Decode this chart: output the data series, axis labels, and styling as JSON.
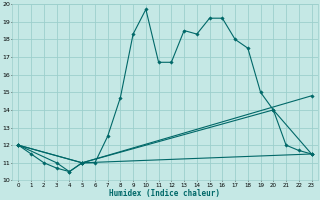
{
  "xlabel": "Humidex (Indice chaleur)",
  "xlim": [
    -0.5,
    23.5
  ],
  "ylim": [
    10,
    20
  ],
  "xticks": [
    0,
    1,
    2,
    3,
    4,
    5,
    6,
    7,
    8,
    9,
    10,
    11,
    12,
    13,
    14,
    15,
    16,
    17,
    18,
    19,
    20,
    21,
    22,
    23
  ],
  "yticks": [
    10,
    11,
    12,
    13,
    14,
    15,
    16,
    17,
    18,
    19,
    20
  ],
  "bg_color": "#c5e8e5",
  "line_color": "#006868",
  "grid_color": "#9dcfcc",
  "line1_x": [
    0,
    1,
    2,
    3,
    4,
    5,
    6,
    7,
    8,
    9,
    10,
    11,
    12,
    13,
    14,
    15,
    16,
    17,
    18,
    19,
    20,
    21,
    22,
    23
  ],
  "line1_y": [
    12,
    11.5,
    11,
    10.7,
    10.5,
    11,
    11,
    12.5,
    14.7,
    18.3,
    19.7,
    16.7,
    16.7,
    18.5,
    18.3,
    19.2,
    19.2,
    18,
    17.5,
    15,
    14,
    12,
    11.7,
    11.5
  ],
  "line2_x": [
    0,
    3,
    4,
    5,
    23
  ],
  "line2_y": [
    12,
    11,
    10.5,
    11,
    11.5
  ],
  "line3_x": [
    0,
    5,
    23
  ],
  "line3_y": [
    12,
    11,
    14.8
  ],
  "line4_x": [
    0,
    5,
    20,
    23
  ],
  "line4_y": [
    12,
    11,
    14,
    11.5
  ]
}
